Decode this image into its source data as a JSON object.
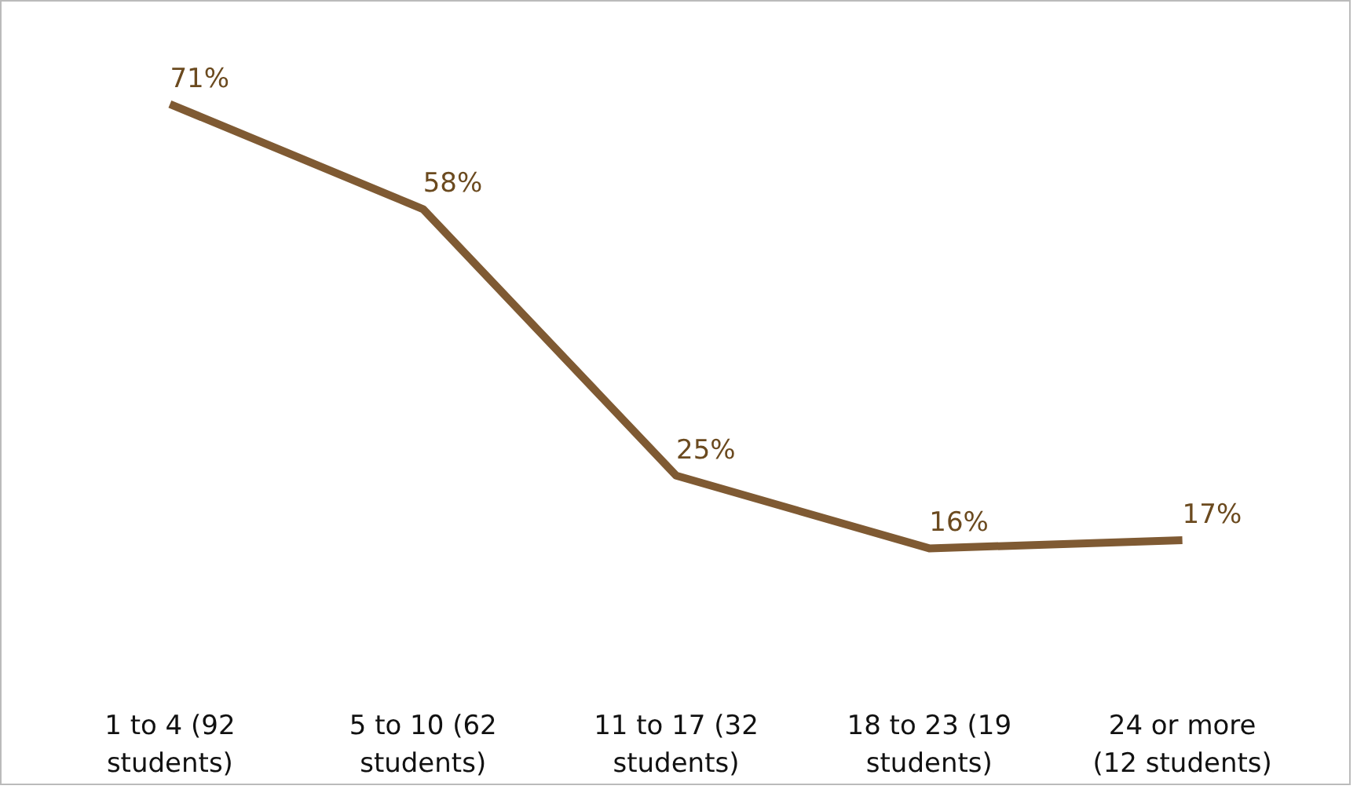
{
  "chart_data": {
    "type": "line",
    "categories": [
      "1 to 4 (92 students)",
      "5 to 10 (62 students)",
      "11 to 17 (32 students)",
      "18 to 23 (19 students)",
      "24 or more (12 students)"
    ],
    "series": [
      {
        "color": "#7f5a33",
        "values": [
          71,
          58,
          25,
          16,
          17
        ],
        "value_labels": [
          "71%",
          "58%",
          "25%",
          "16%",
          "17%"
        ]
      }
    ],
    "grid": false,
    "marker": "none",
    "line_style": "solid"
  }
}
